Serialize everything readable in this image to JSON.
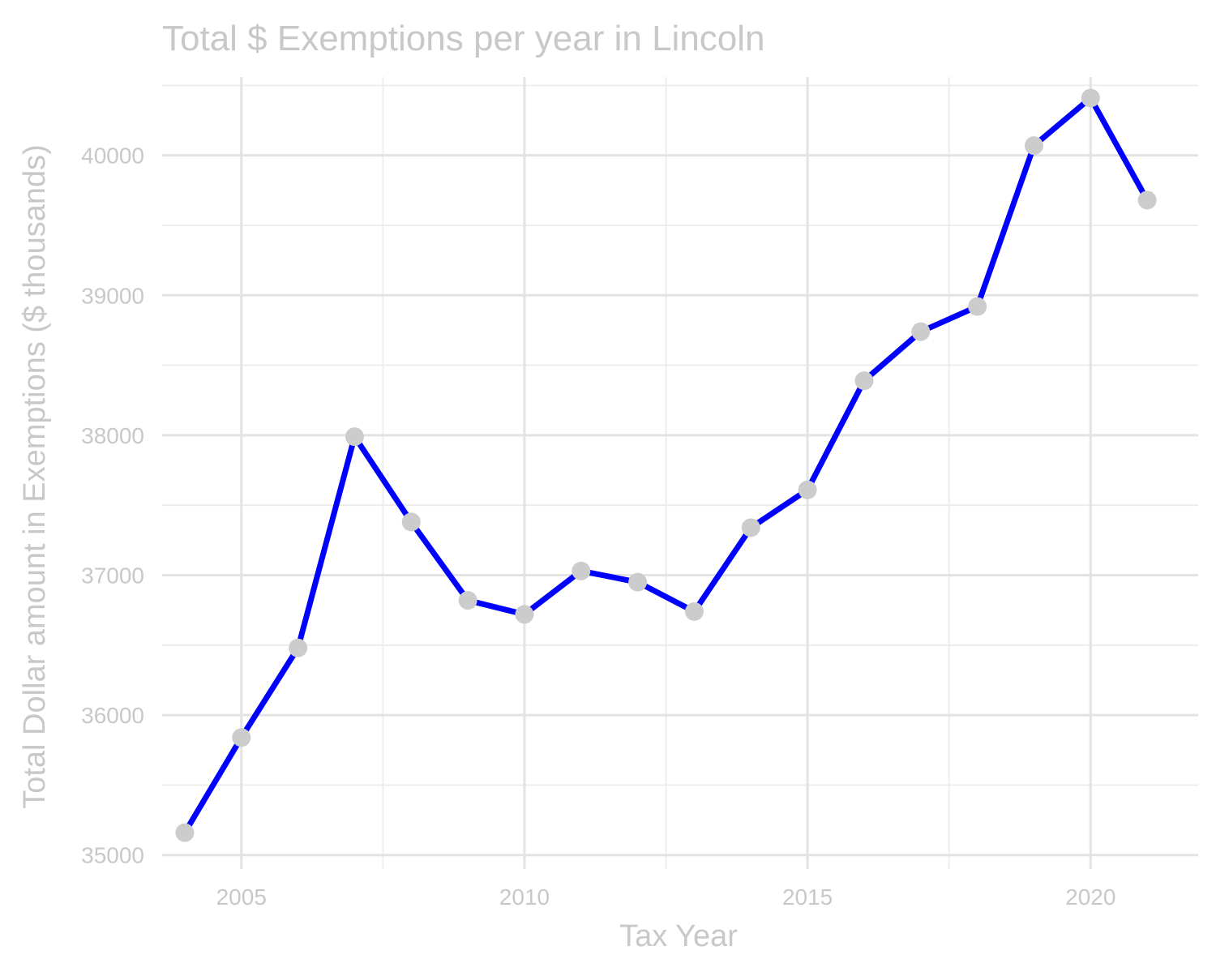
{
  "chart_data": {
    "type": "line",
    "title": "Total $ Exemptions per year in Lincoln",
    "xlabel": "Tax Year",
    "ylabel": "Total Dollar amount in Exemptions ($ thousands)",
    "x": [
      2004,
      2005,
      2006,
      2007,
      2008,
      2009,
      2010,
      2011,
      2012,
      2013,
      2014,
      2015,
      2016,
      2017,
      2018,
      2019,
      2020,
      2021
    ],
    "series": [
      {
        "values": [
          35160,
          35840,
          36480,
          37990,
          37380,
          36820,
          36720,
          37030,
          36950,
          36740,
          37340,
          37610,
          38390,
          38740,
          38920,
          40070,
          40410,
          39680
        ],
        "line_color": "#0000ff",
        "point_color": "#cccccc"
      }
    ],
    "xlim": [
      2003.6,
      2021.9
    ],
    "ylim": [
      34900,
      40560
    ],
    "x_ticks": [
      2005,
      2010,
      2015,
      2020
    ],
    "x_tick_labels": [
      "2005",
      "2010",
      "2015",
      "2020"
    ],
    "y_ticks": [
      35000,
      36000,
      37000,
      38000,
      39000,
      40000
    ],
    "y_tick_labels": [
      "35000",
      "36000",
      "37000",
      "38000",
      "39000",
      "40000"
    ],
    "grid": true,
    "legend": "none",
    "colors": {
      "text": "#c8c8c8",
      "grid": "#e3e3e3",
      "line": "#0000ff",
      "points": "#cccccc"
    }
  }
}
